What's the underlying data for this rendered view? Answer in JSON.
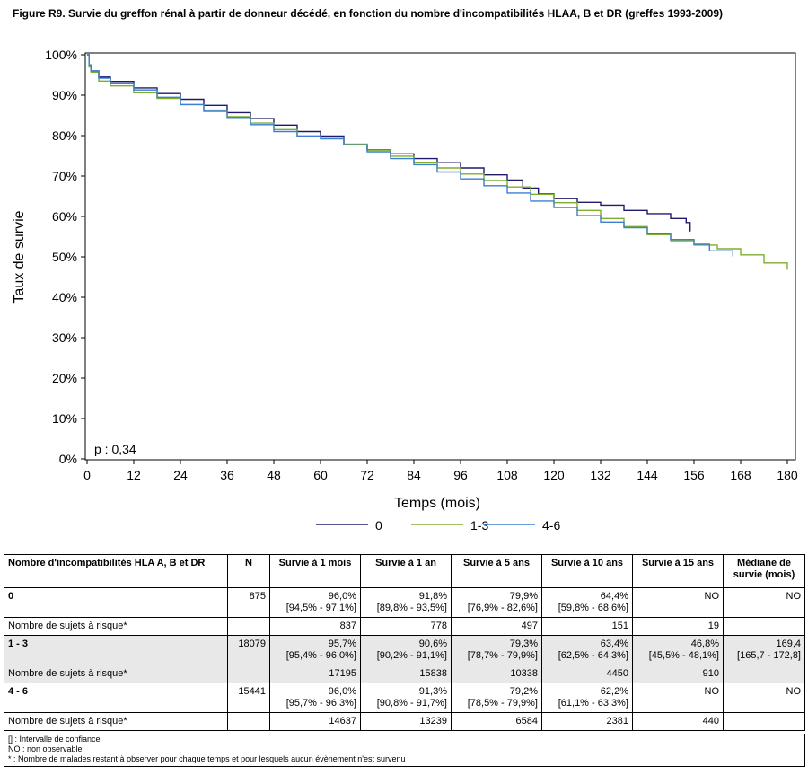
{
  "figure": {
    "title": "Figure R9. Survie du greffon rénal à partir de donneur décédé, en fonction du nombre d'incompatibilités HLAA, B et DR (greffes 1993-2009)"
  },
  "chart_data": {
    "type": "line",
    "title": "Figure R9. Survie du greffon rénal à partir de donneur décédé, en fonction du nombre d'incompatibilités HLAA, B et DR (greffes 1993-2009)",
    "xlabel": "Temps (mois)",
    "ylabel": "Taux de survie",
    "xlim": [
      0,
      180
    ],
    "ylim": [
      0,
      100
    ],
    "x_ticks": [
      0,
      12,
      24,
      36,
      48,
      60,
      72,
      84,
      96,
      108,
      120,
      132,
      144,
      156,
      168,
      180
    ],
    "y_ticks": [
      0,
      10,
      20,
      30,
      40,
      50,
      60,
      70,
      80,
      90,
      100
    ],
    "y_tick_labels": [
      "0%",
      "10%",
      "20%",
      "30%",
      "40%",
      "50%",
      "60%",
      "70%",
      "80%",
      "90%",
      "100%"
    ],
    "grid": false,
    "legend_position": "bottom",
    "annotation": "p : 0,34",
    "series": [
      {
        "name": "0",
        "color": "#1f1a6e",
        "x": [
          0,
          0.5,
          1,
          3,
          6,
          12,
          18,
          24,
          30,
          36,
          42,
          48,
          54,
          60,
          66,
          72,
          78,
          84,
          90,
          96,
          102,
          108,
          112,
          116,
          120,
          126,
          132,
          138,
          144,
          150,
          154,
          155
        ],
        "y": [
          100,
          97.5,
          96.0,
          94.5,
          93.4,
          91.8,
          90.4,
          89.0,
          87.5,
          85.7,
          84.2,
          82.6,
          81.0,
          79.9,
          77.8,
          76.5,
          75.5,
          74.3,
          73.3,
          72.0,
          70.3,
          69.0,
          67.0,
          65.6,
          64.4,
          63.5,
          62.8,
          61.5,
          60.7,
          59.5,
          58.5,
          56.3
        ]
      },
      {
        "name": "1-3",
        "color": "#7fae2e",
        "x": [
          0,
          0.5,
          1,
          3,
          6,
          12,
          18,
          24,
          30,
          36,
          42,
          48,
          54,
          60,
          66,
          72,
          78,
          84,
          90,
          96,
          102,
          108,
          114,
          120,
          126,
          132,
          138,
          144,
          150,
          156,
          162,
          168,
          174,
          180
        ],
        "y": [
          100,
          97.0,
          95.7,
          93.5,
          92.3,
          90.6,
          89.2,
          87.7,
          86.3,
          84.7,
          83.1,
          81.5,
          79.9,
          79.3,
          77.9,
          76.4,
          74.9,
          73.4,
          72.0,
          70.5,
          68.9,
          67.3,
          65.5,
          63.4,
          61.5,
          59.5,
          57.5,
          55.5,
          54.0,
          52.9,
          52.0,
          50.5,
          48.5,
          46.8
        ]
      },
      {
        "name": "4-6",
        "color": "#3a7fd1",
        "x": [
          0,
          0.5,
          1,
          3,
          6,
          12,
          18,
          24,
          30,
          36,
          42,
          48,
          54,
          60,
          66,
          72,
          78,
          84,
          90,
          96,
          102,
          108,
          114,
          120,
          126,
          132,
          138,
          144,
          150,
          156,
          160,
          166
        ],
        "y": [
          100,
          97.5,
          96.0,
          94.2,
          93.0,
          91.3,
          89.5,
          87.7,
          86.0,
          84.5,
          82.7,
          81.0,
          79.9,
          79.2,
          77.7,
          76.0,
          74.3,
          72.8,
          71.0,
          69.3,
          67.6,
          65.8,
          63.8,
          62.2,
          60.2,
          58.6,
          57.2,
          55.7,
          54.3,
          53.1,
          51.5,
          50.1
        ]
      }
    ]
  },
  "table": {
    "headers": [
      "Nombre d'incompatibilités HLA A, B et DR",
      "N",
      "Survie à 1 mois",
      "Survie à 1 an",
      "Survie à 5 ans",
      "Survie à 10 ans",
      "Survie à 15 ans",
      "Médiane de survie (mois)"
    ],
    "rows": [
      {
        "label": "0",
        "n": "875",
        "cells": [
          {
            "v": "96,0%",
            "ci": "[94,5% - 97,1%]"
          },
          {
            "v": "91,8%",
            "ci": "[89,8% - 93,5%]"
          },
          {
            "v": "79,9%",
            "ci": "[76,9% - 82,6%]"
          },
          {
            "v": "64,4%",
            "ci": "[59,8% - 68,6%]"
          },
          {
            "v": "NO",
            "ci": ""
          },
          {
            "v": "NO",
            "ci": ""
          }
        ],
        "risk_label": "Nombre de sujets à risque*",
        "risk": [
          "837",
          "778",
          "497",
          "151",
          "19",
          ""
        ]
      },
      {
        "label": "1 - 3",
        "n": "18079",
        "cells": [
          {
            "v": "95,7%",
            "ci": "[95,4% - 96,0%]"
          },
          {
            "v": "90,6%",
            "ci": "[90,2% - 91,1%]"
          },
          {
            "v": "79,3%",
            "ci": "[78,7% - 79,9%]"
          },
          {
            "v": "63,4%",
            "ci": "[62,5% - 64,3%]"
          },
          {
            "v": "46,8%",
            "ci": "[45,5% - 48,1%]"
          },
          {
            "v": "169,4",
            "ci": "[165,7 - 172,8]"
          }
        ],
        "risk_label": "Nombre de sujets à risque*",
        "risk": [
          "17195",
          "15838",
          "10338",
          "4450",
          "910",
          ""
        ]
      },
      {
        "label": "4 - 6",
        "n": "15441",
        "cells": [
          {
            "v": "96,0%",
            "ci": "[95,7% - 96,3%]"
          },
          {
            "v": "91,3%",
            "ci": "[90,8% - 91,7%]"
          },
          {
            "v": "79,2%",
            "ci": "[78,5% - 79,9%]"
          },
          {
            "v": "62,2%",
            "ci": "[61,1% - 63,3%]"
          },
          {
            "v": "NO",
            "ci": ""
          },
          {
            "v": "NO",
            "ci": ""
          }
        ],
        "risk_label": "Nombre de sujets à risque*",
        "risk": [
          "14637",
          "13239",
          "6584",
          "2381",
          "440",
          ""
        ]
      }
    ],
    "notes": [
      "[] : Intervalle de confiance",
      "NO : non observable",
      "* : Nombre de malades restant à observer pour chaque temps et pour lesquels aucun évènement n'est survenu"
    ]
  }
}
